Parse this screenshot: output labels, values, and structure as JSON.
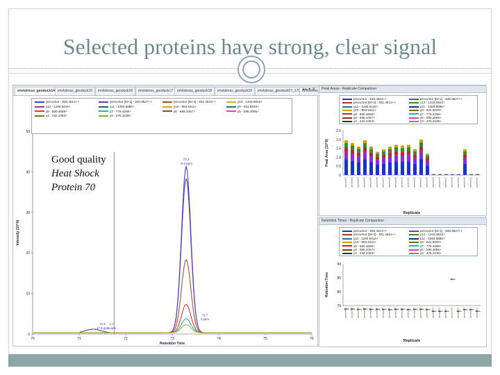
{
  "slide": {
    "title": "Selected proteins have strong, clear signal",
    "annotation": {
      "line1": "Good quality",
      "line2": "Heat Shock",
      "line3": "Protein 70"
    }
  },
  "left_panel": {
    "tabs": [
      "envtstress_geoduck14",
      "envtstress_geoduck15",
      "envtstress_geoduck16",
      "envtstress_geoduck17",
      "envtstress_geoduck18",
      "envtstress_geoduck19",
      "envtstress_geoduck07_170124190430",
      "envtstress_g"
    ],
    "tab_controls": "◂ ▸ ▾ ✕",
    "legend": [
      {
        "label": "precursor - 830.4512++",
        "color": "#3a46c8"
      },
      {
        "label": "precursor [M+1] - 830.9527++",
        "color": "#6a3fb5"
      },
      {
        "label": "precursor [M+2] - 831.4541++",
        "color": "#a0522d"
      },
      {
        "label": "y13 - 1319.6842+",
        "color": "#c7b03a"
      },
      {
        "label": "y12 - 1190.6416+",
        "color": "#8a3aa0"
      },
      {
        "label": "y11 - 1093.5888+",
        "color": "#4a4a4a"
      },
      {
        "label": "y10 - 992.5411+",
        "color": "#e0a020"
      },
      {
        "label": "y9 - 921.5040+",
        "color": "#2c6e6e"
      },
      {
        "label": "y8 - 850.4669+",
        "color": "#d03a3a"
      },
      {
        "label": "y7 - 779.4298+",
        "color": "#2ab0b0"
      },
      {
        "label": "y6 - 666.3457+",
        "color": "#7a5a2a"
      },
      {
        "label": "y5 - 595.3086+",
        "color": "#c050c0"
      },
      {
        "label": "y4 - 432.2453+",
        "color": "#5a7a2a"
      },
      {
        "label": "y3 - 375.2238+",
        "color": "#7ab048"
      }
    ]
  },
  "chart_data": [
    {
      "type": "line",
      "xlabel": "Retention Time",
      "ylabel": "Intensity (10^6)",
      "xlim": [
        70,
        76
      ],
      "ylim": [
        0,
        50
      ],
      "xticks": [
        "70",
        "71",
        "72",
        "73",
        "74",
        "75",
        "76"
      ],
      "yticks": [
        "0",
        "10",
        "20",
        "30",
        "40",
        "50"
      ],
      "vline": 71.75,
      "annotations": [
        "73.3",
        "-0.8 ppm",
        "71.5",
        "-17.9 ppm",
        "1.7",
        "1 ppm",
        "73.7",
        "1 ppm"
      ],
      "series": [
        {
          "name": "precursor - 830.4512++",
          "peak_rt": 73.3,
          "peak_height": 41
        },
        {
          "name": "precursor [M+1] - 830.9527++",
          "peak_rt": 73.3,
          "peak_height": 38
        },
        {
          "name": "precursor [M+2] - 831.4541++",
          "peak_rt": 73.3,
          "peak_height": 18
        },
        {
          "name": "y8 - 850.4669+",
          "peak_rt": 73.3,
          "peak_height": 7
        },
        {
          "name": "y7 - 779.4298+",
          "peak_rt": 73.3,
          "peak_height": 3.5
        },
        {
          "name": "y13 - 1319.6842+",
          "peak_rt": 73.3,
          "peak_height": 2
        }
      ]
    },
    {
      "type": "bar",
      "title": "Peak Areas - Replicate Comparison",
      "xlabel": "Replicate",
      "ylabel": "Peak Area (10^9)",
      "ylim": [
        0,
        2.5
      ],
      "yticks": [
        "0",
        "0.5",
        "1.0",
        "1.5",
        "2.0",
        "2.5"
      ],
      "categories": [
        "geoduck01",
        "geoduck02",
        "geoduck03",
        "geoduck04",
        "geoduck05",
        "geoduck06",
        "geoduck07",
        "geoduck08",
        "geoduck09",
        "geoduck10",
        "geoduck11",
        "geoduck12",
        "geoduck13",
        "geoduck14",
        "geoduck15",
        "geoduck16",
        "geoduck17",
        "geoduck18",
        "geoduck19",
        "geoduck20",
        "geoduck21",
        "geoduck22"
      ],
      "values": [
        1.95,
        1.8,
        1.6,
        1.95,
        1.6,
        1.3,
        1.45,
        1.6,
        1.7,
        1.65,
        1.7,
        1.45,
        2.0,
        1.2,
        0.05,
        0.05,
        0.05,
        0.05,
        0.05,
        1.45,
        0.05,
        0.05
      ]
    },
    {
      "type": "scatter",
      "title": "Retention Times - Replicate Comparison",
      "xlabel": "Replicate",
      "ylabel": "Retention Time",
      "ylim": [
        75,
        90
      ],
      "yticks": [
        "75",
        "80",
        "85",
        "90"
      ],
      "values": [
        73.8,
        73.8,
        73.7,
        73.8,
        73.7,
        73.7,
        73.7,
        73.6,
        73.7,
        73.7,
        73.6,
        73.7,
        73.7,
        73.6,
        73.0,
        73.0,
        72.6,
        84.5,
        72.8,
        73.6,
        73.6,
        73.0
      ]
    }
  ],
  "right_top": {
    "title": "Peak Areas - Replicate Comparison",
    "legend": [
      {
        "label": "precursor - 830.4512++",
        "color": "#1c2fd0"
      },
      {
        "label": "precursor [M+1] - 830.9527++",
        "color": "#8a2be2"
      },
      {
        "label": "precursor [M+2] - 831.4541++",
        "color": "#b03030"
      },
      {
        "label": "y13 - 1319.6842+",
        "color": "#2f8f2f"
      },
      {
        "label": "y12 - 1190.6416+",
        "color": "#2a6e9e"
      },
      {
        "label": "y11 - 1093.5888+",
        "color": "#203060"
      },
      {
        "label": "y10 - 992.5411+",
        "color": "#d0a000"
      },
      {
        "label": "y9 - 921.5040+",
        "color": "#607030"
      },
      {
        "label": "y8 - 850.4669+",
        "color": "#d02020"
      },
      {
        "label": "y7 - 779.4298+",
        "color": "#20b0c0"
      },
      {
        "label": "y6 - 666.3457+",
        "color": "#804000"
      },
      {
        "label": "y5 - 595.3086+",
        "color": "#d040d0"
      },
      {
        "label": "y4 - 432.2453+",
        "color": "#303030"
      },
      {
        "label": "y3 - 375.2238+",
        "color": "#909040"
      }
    ]
  },
  "right_bottom": {
    "title": "Retention Times - Replicate Comparison"
  }
}
